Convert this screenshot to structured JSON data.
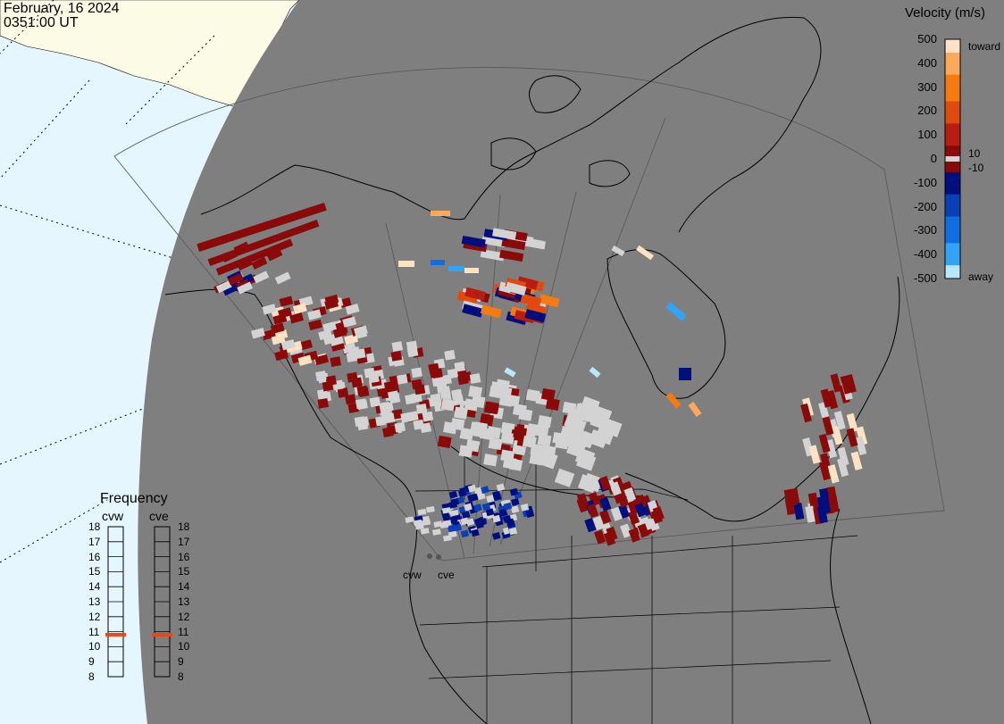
{
  "header": {
    "date": "February, 16 2024",
    "time": "0351:00 UT"
  },
  "velocity_legend": {
    "title": "Velocity (m/s)",
    "ticks": [
      "500",
      "400",
      "300",
      "200",
      "100",
      "0",
      "-100",
      "-200",
      "-300",
      "-400",
      "-500"
    ],
    "extra_ticks": [
      "10",
      "-10"
    ],
    "toward_label": "toward",
    "away_label": "away"
  },
  "frequency_legend": {
    "title": "Frequency",
    "radars": [
      "cvw",
      "cve"
    ],
    "levels": [
      "18",
      "17",
      "16",
      "15",
      "14",
      "13",
      "12",
      "11",
      "10",
      "9",
      "8"
    ],
    "current_mhz": {
      "cvw": 10.8,
      "cve": 10.8
    },
    "marker_color": "#e8481a"
  },
  "sites": [
    {
      "name": "cvw"
    },
    {
      "name": "cve"
    }
  ],
  "colors": {
    "night": "#7f7f7f",
    "ocean_day": "#e6f6ff",
    "land_day": "#fbfbe6",
    "ground_scatter": "#d3d3d3",
    "velocity_scale": [
      "#fde3c4",
      "#fda85a",
      "#f67a12",
      "#e04a0c",
      "#b81d10",
      "#8a0a0a",
      "#000e7e",
      "#0a3fb8",
      "#0f6fe0",
      "#33a3f5",
      "#b9e6fd"
    ]
  }
}
